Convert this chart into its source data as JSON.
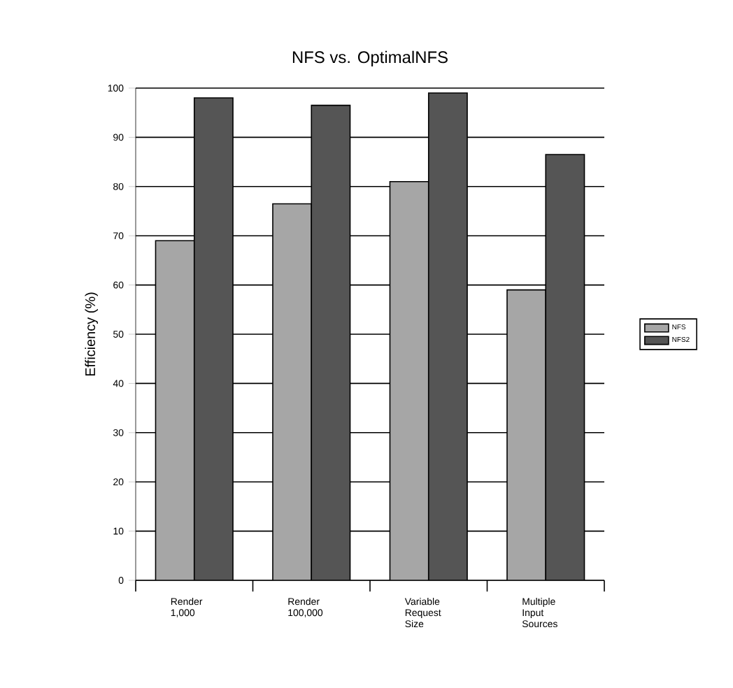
{
  "chart_data": {
    "type": "bar",
    "title": "NFS vs. OptimalNFS",
    "ylabel": "Efficiency (%)",
    "categories": [
      "Render 1,000",
      "Render 100,000",
      "Variable Request Size",
      "Multiple Input Sources"
    ],
    "series": [
      {
        "name": "NFS",
        "color": "#a6a6a6",
        "values": [
          69,
          76.5,
          81,
          59
        ]
      },
      {
        "name": "NFS2",
        "color": "#555555",
        "values": [
          98,
          96.5,
          99,
          86.5
        ]
      }
    ],
    "ylim": [
      0,
      100
    ],
    "yticks": [
      0,
      10,
      20,
      30,
      40,
      50,
      60,
      70,
      80,
      90,
      100
    ],
    "grid": "y",
    "legend": "right"
  }
}
